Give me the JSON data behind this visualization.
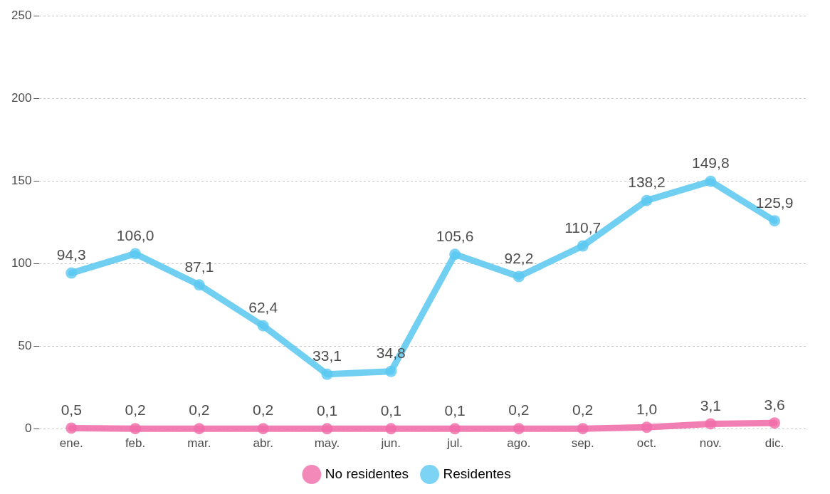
{
  "chart_data": {
    "type": "line",
    "categories": [
      "ene.",
      "feb.",
      "mar.",
      "abr.",
      "may.",
      "jun.",
      "jul.",
      "ago.",
      "sep.",
      "oct.",
      "nov.",
      "dic."
    ],
    "series": [
      {
        "name": "No residentes",
        "color": "#f06ba8",
        "values": [
          0.5,
          0.2,
          0.2,
          0.2,
          0.1,
          0.1,
          0.1,
          0.2,
          0.2,
          1.0,
          3.1,
          3.6
        ],
        "value_labels": [
          "0,5",
          "0,2",
          "0,2",
          "0,2",
          "0,1",
          "0,1",
          "0,1",
          "0,2",
          "0,2",
          "1,0",
          "3,1",
          "3,6"
        ]
      },
      {
        "name": "Residentes",
        "color": "#5bc8f0",
        "values": [
          94.3,
          106.0,
          87.1,
          62.4,
          33.1,
          34.8,
          105.6,
          92.2,
          110.7,
          138.2,
          149.8,
          125.9
        ],
        "value_labels": [
          "94,3",
          "106,0",
          "87,1",
          "62,4",
          "33,1",
          "34,8",
          "105,6",
          "92,2",
          "110,7",
          "138,2",
          "149,8",
          "125,9"
        ]
      }
    ],
    "ylim": [
      0,
      250
    ],
    "yticks": [
      0,
      50,
      100,
      150,
      200,
      250
    ],
    "grid": "y",
    "legend": "bottom",
    "marker": "circle",
    "line_style": "solid"
  }
}
